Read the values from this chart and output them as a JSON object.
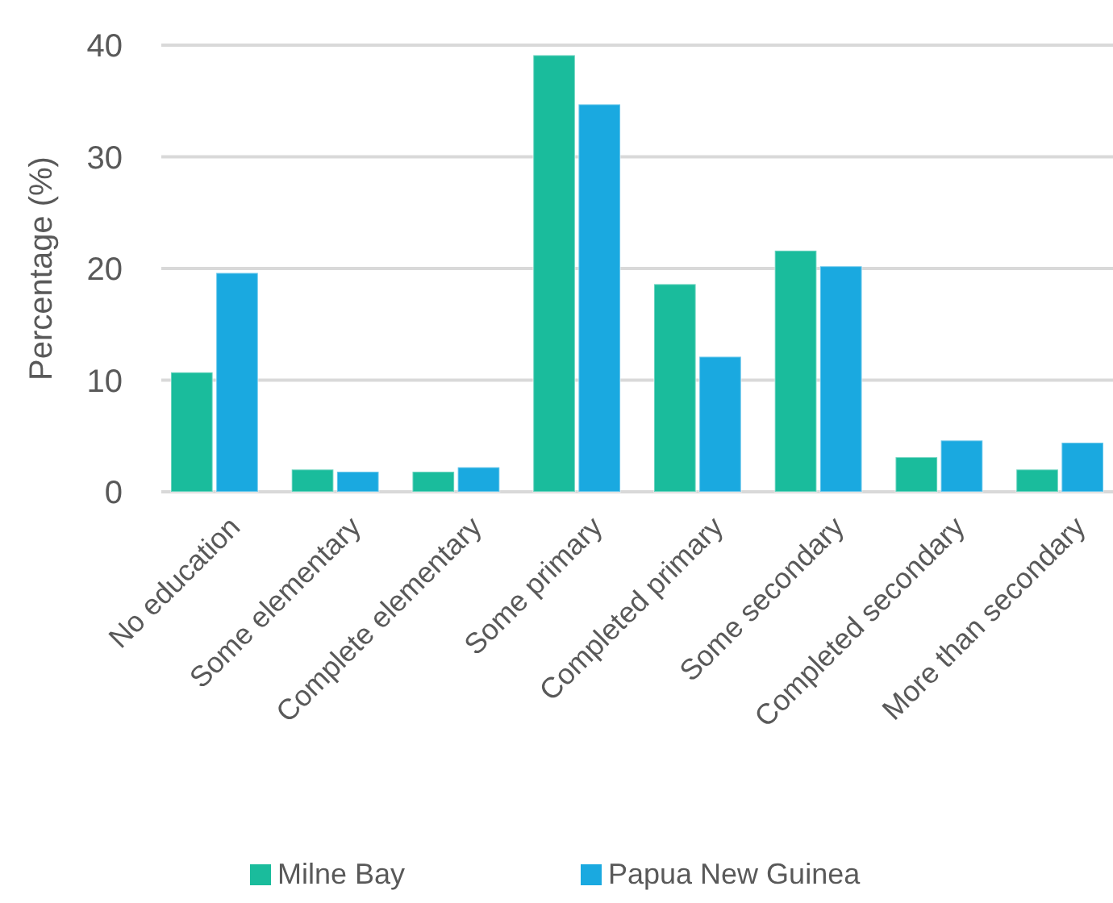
{
  "chart_data": {
    "type": "bar",
    "ylabel": "Percentage (%)",
    "categories": [
      "No education",
      "Some elementary",
      "Complete elementary",
      "Some primary",
      "Completed primary",
      "Some secondary",
      "Completed secondary",
      "More than secondary"
    ],
    "series": [
      {
        "name": "Milne Bay",
        "color": "#1abc9c",
        "values": [
          10.7,
          2.0,
          1.8,
          39.1,
          18.6,
          21.6,
          3.1,
          2.0
        ]
      },
      {
        "name": "Papua New Guinea",
        "color": "#1aa9e0",
        "values": [
          19.6,
          1.8,
          2.2,
          34.7,
          12.1,
          20.2,
          4.6,
          4.4
        ]
      }
    ],
    "ylim": [
      0,
      40
    ],
    "yticks": [
      0,
      10,
      20,
      30,
      40
    ],
    "grid": "y",
    "legend": "bottom"
  }
}
